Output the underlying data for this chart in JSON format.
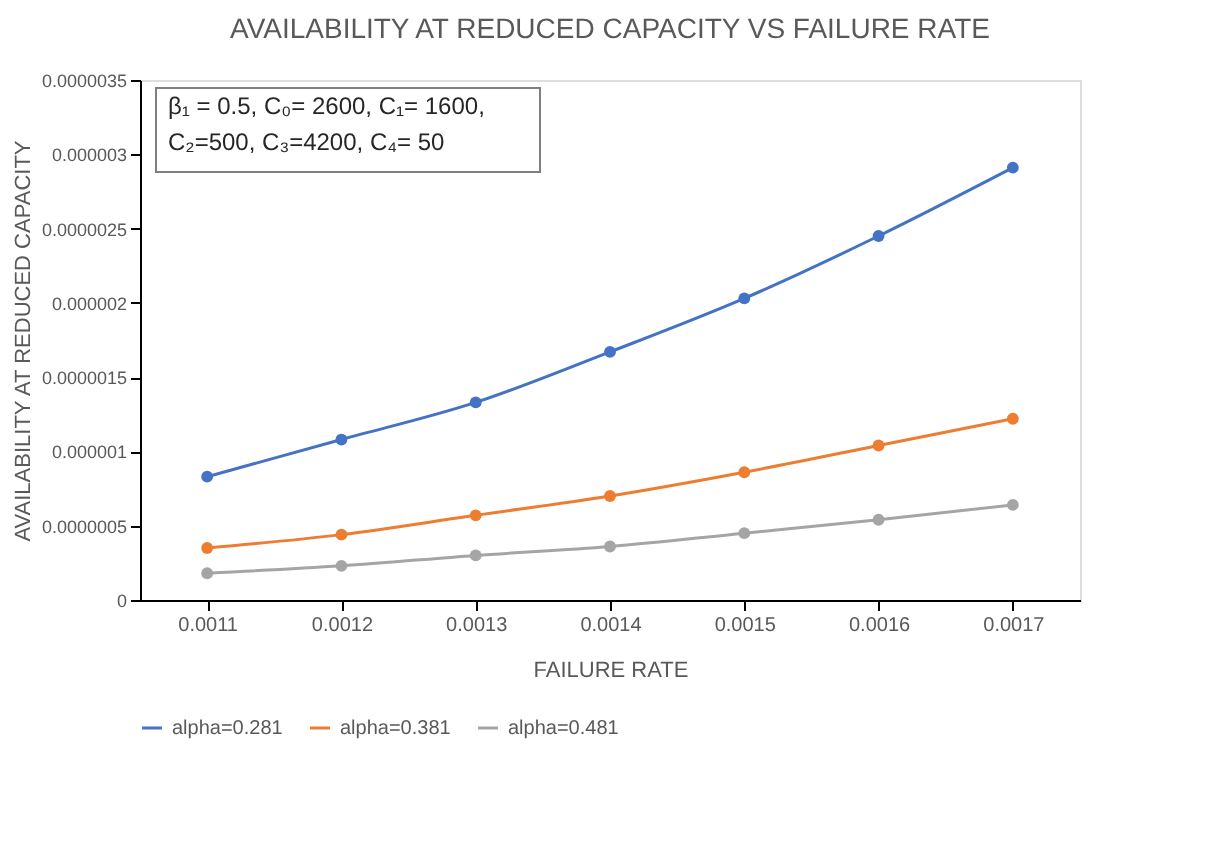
{
  "chart_data": {
    "type": "line",
    "title": "AVAILABILITY AT REDUCED CAPACITY VS FAILURE RATE",
    "xlabel": "FAILURE RATE",
    "ylabel": "AVAILABILITY AT REDUCED CAPACITY",
    "annotations": [
      "β₁ = 0.5, C₀= 2600, C₁= 1600,\nC₂=500, C₃=4200, C₄= 50"
    ],
    "categories": [
      "0.0011",
      "0.0012",
      "0.0013",
      "0.0014",
      "0.0015",
      "0.0016",
      "0.0017"
    ],
    "series": [
      {
        "name": "alpha=0.281",
        "color": "#4472c4",
        "values": [
          8.3e-07,
          1.08e-06,
          1.33e-06,
          1.67e-06,
          2.03e-06,
          2.45e-06,
          2.91e-06
        ]
      },
      {
        "name": "alpha=0.381",
        "color": "#ed7d31",
        "values": [
          3.5e-07,
          4.4e-07,
          5.7e-07,
          7e-07,
          8.6e-07,
          1.04e-06,
          1.22e-06
        ]
      },
      {
        "name": "alpha=0.481",
        "color": "#a5a5a5",
        "values": [
          1.8e-07,
          2.3e-07,
          3e-07,
          3.6e-07,
          4.5e-07,
          5.4e-07,
          6.4e-07
        ]
      }
    ],
    "ylim": [
      0,
      3.5e-06
    ],
    "yticks": [
      0,
      {
        "value": 5e-07,
        "label": "0.0000005"
      },
      {
        "value": 1e-06,
        "label": "0.000001"
      },
      {
        "value": 1.5e-06,
        "label": "0.0000015"
      },
      {
        "value": 2e-06,
        "label": "0.000002"
      },
      {
        "value": 2.5e-06,
        "label": "0.0000025"
      },
      {
        "value": 3e-06,
        "label": "0.000003"
      },
      {
        "value": 3.5e-06,
        "label": "0.0000035"
      }
    ],
    "grid": false,
    "legend": "bottom",
    "marker": "circle",
    "line_style": "solid"
  }
}
